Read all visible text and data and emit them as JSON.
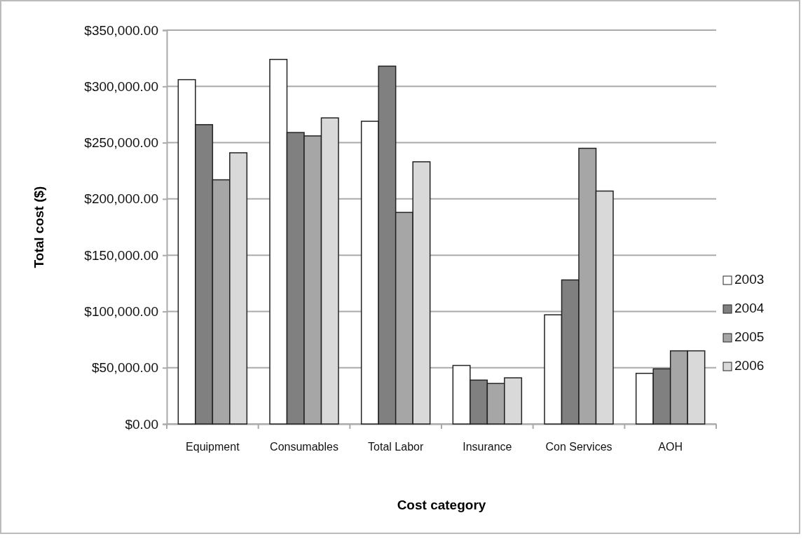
{
  "chart_data": {
    "type": "bar",
    "xlabel": "Cost category",
    "ylabel": "Total cost ($)",
    "categories": [
      "Equipment",
      "Consumables",
      "Total Labor",
      "Insurance",
      "Con Services",
      "AOH"
    ],
    "series": [
      {
        "name": "2003",
        "color": "#ffffff",
        "values": [
          306000,
          324000,
          269000,
          52000,
          97000,
          45000
        ]
      },
      {
        "name": "2004",
        "color": "#808080",
        "values": [
          266000,
          259000,
          318000,
          39000,
          128000,
          49000
        ]
      },
      {
        "name": "2005",
        "color": "#a6a6a6",
        "values": [
          217000,
          256000,
          188000,
          36000,
          245000,
          65000
        ]
      },
      {
        "name": "2006",
        "color": "#d9d9d9",
        "values": [
          241000,
          272000,
          233000,
          41000,
          207000,
          65000
        ]
      }
    ],
    "ylim": [
      0,
      350000
    ],
    "yticks": [
      {
        "value": 0,
        "label": "$0.00"
      },
      {
        "value": 50000,
        "label": "$50,000.00"
      },
      {
        "value": 100000,
        "label": "$100,000.00"
      },
      {
        "value": 150000,
        "label": "$150,000.00"
      },
      {
        "value": 200000,
        "label": "$200,000.00"
      },
      {
        "value": 250000,
        "label": "$250,000.00"
      },
      {
        "value": 300000,
        "label": "$300,000.00"
      },
      {
        "value": 350000,
        "label": "$350,000.00"
      }
    ],
    "grid": "y",
    "legend": "right"
  }
}
